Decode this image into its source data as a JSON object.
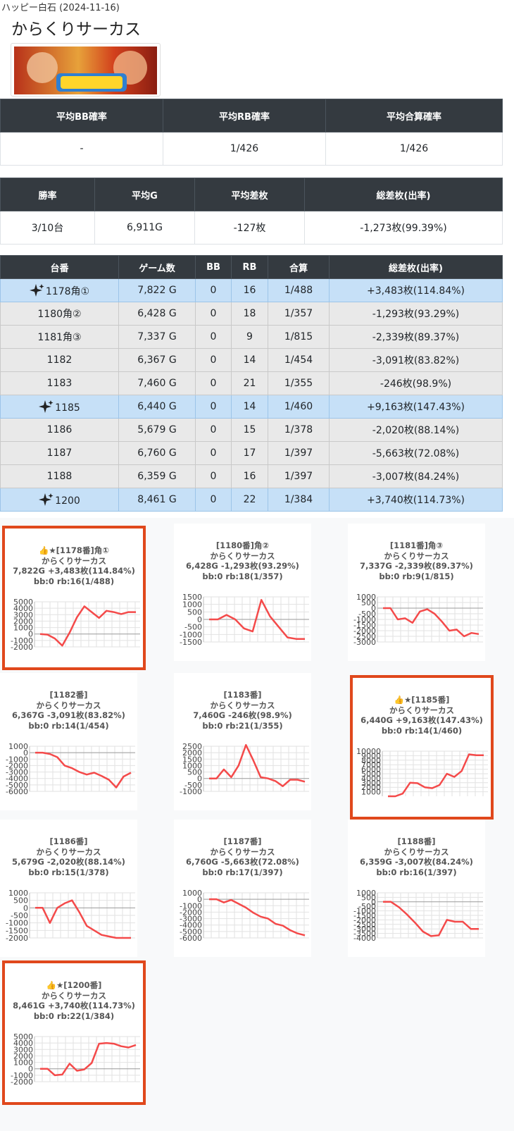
{
  "header": {
    "site": "ハッピー白石 (2024-11-16)",
    "title": "からくりサーカス"
  },
  "summary1": {
    "headers": [
      "平均BB確率",
      "平均RB確率",
      "平均合算確率"
    ],
    "rows": [
      [
        "-",
        "1/426",
        "1/426"
      ]
    ]
  },
  "summary2": {
    "headers": [
      "勝率",
      "平均G",
      "平均差枚",
      "総差枚(出率)"
    ],
    "rows": [
      [
        "3/10台",
        "6,911G",
        "-127枚",
        "-1,273枚(99.39%)"
      ]
    ]
  },
  "machines": {
    "headers": [
      "台番",
      "ゲーム数",
      "BB",
      "RB",
      "合算",
      "総差枚(出率)"
    ],
    "rows": [
      {
        "cells": [
          "1178角①",
          "7,822 G",
          "0",
          "16",
          "1/488",
          "+3,483枚(114.84%)"
        ],
        "highlighted": true
      },
      {
        "cells": [
          "1180角②",
          "6,428 G",
          "0",
          "18",
          "1/357",
          "-1,293枚(93.29%)"
        ],
        "highlighted": false
      },
      {
        "cells": [
          "1181角③",
          "7,337 G",
          "0",
          "9",
          "1/815",
          "-2,339枚(89.37%)"
        ],
        "highlighted": false
      },
      {
        "cells": [
          "1182",
          "6,367 G",
          "0",
          "14",
          "1/454",
          "-3,091枚(83.82%)"
        ],
        "highlighted": false
      },
      {
        "cells": [
          "1183",
          "7,460 G",
          "0",
          "21",
          "1/355",
          "-246枚(98.9%)"
        ],
        "highlighted": false
      },
      {
        "cells": [
          "1185",
          "6,440 G",
          "0",
          "14",
          "1/460",
          "+9,163枚(147.43%)"
        ],
        "highlighted": true
      },
      {
        "cells": [
          "1186",
          "5,679 G",
          "0",
          "15",
          "1/378",
          "-2,020枚(88.14%)"
        ],
        "highlighted": false
      },
      {
        "cells": [
          "1187",
          "6,760 G",
          "0",
          "17",
          "1/397",
          "-5,663枚(72.08%)"
        ],
        "highlighted": false
      },
      {
        "cells": [
          "1188",
          "6,359 G",
          "0",
          "16",
          "1/397",
          "-3,007枚(84.24%)"
        ],
        "highlighted": false
      },
      {
        "cells": [
          "1200",
          "8,461 G",
          "0",
          "22",
          "1/384",
          "+3,740枚(114.73%)"
        ],
        "highlighted": true
      }
    ]
  },
  "cards": [
    {
      "title": "👍★[1178番]角①",
      "subtitle": "からくりサーカス",
      "stats": "7,822G +3,483枚(114.84%)",
      "bb": "bb:0 rb:16(1/488)",
      "highlighted": true,
      "chart": {
        "type": "line",
        "color": "#f44a4a",
        "ylim": [
          -2000,
          5000
        ],
        "yticks": [
          5000,
          4000,
          3000,
          2000,
          1000,
          0,
          -1000,
          -2000
        ],
        "values": [
          0,
          -100,
          -700,
          -1800,
          200,
          2600,
          4300,
          3400,
          2500,
          3600,
          3400,
          3100,
          3400,
          3400
        ]
      }
    },
    {
      "title": "[1180番]角②",
      "subtitle": "からくりサーカス",
      "stats": "6,428G -1,293枚(93.29%)",
      "bb": "bb:0 rb:18(1/357)",
      "highlighted": false,
      "chart": {
        "type": "line",
        "color": "#f44a4a",
        "ylim": [
          -1500,
          1500
        ],
        "yticks": [
          1500,
          1000,
          500,
          0,
          -500,
          -1000,
          -1500
        ],
        "values": [
          0,
          0,
          300,
          0,
          -600,
          -800,
          1300,
          200,
          -500,
          -1200,
          -1300,
          -1300
        ]
      }
    },
    {
      "title": "[1181番]角③",
      "subtitle": "からくりサーカス",
      "stats": "7,337G -2,339枚(89.37%)",
      "bb": "bb:0 rb:9(1/815)",
      "highlighted": false,
      "chart": {
        "type": "line",
        "color": "#f44a4a",
        "ylim": [
          -3000,
          1000
        ],
        "yticks": [
          1000,
          500,
          0,
          -500,
          -1000,
          -1500,
          -2000,
          -2500,
          -3000
        ],
        "values": [
          0,
          0,
          -1000,
          -900,
          -1300,
          -300,
          -100,
          -500,
          -1200,
          -2000,
          -1900,
          -2500,
          -2200,
          -2300
        ]
      }
    },
    {
      "title": "[1182番]",
      "subtitle": "からくりサーカス",
      "stats": "6,367G -3,091枚(83.82%)",
      "bb": "bb:0 rb:14(1/454)",
      "highlighted": false,
      "chart": {
        "type": "line",
        "color": "#f44a4a",
        "ylim": [
          -6000,
          1000
        ],
        "yticks": [
          1000,
          0,
          -1000,
          -2000,
          -3000,
          -4000,
          -5000,
          -6000
        ],
        "values": [
          0,
          0,
          -200,
          -700,
          -2000,
          -2400,
          -3000,
          -3400,
          -3100,
          -3600,
          -4200,
          -5400,
          -3700,
          -3100
        ]
      }
    },
    {
      "title": "[1183番]",
      "subtitle": "からくりサーカス",
      "stats": "7,460G -246枚(98.9%)",
      "bb": "bb:0 rb:21(1/355)",
      "highlighted": false,
      "chart": {
        "type": "line",
        "color": "#f44a4a",
        "ylim": [
          -1000,
          2500
        ],
        "yticks": [
          2500,
          2000,
          1500,
          1000,
          500,
          0,
          -500,
          -1000
        ],
        "values": [
          0,
          0,
          700,
          100,
          1000,
          2600,
          1400,
          100,
          0,
          -200,
          -600,
          -100,
          -100,
          -250
        ]
      }
    },
    {
      "title": "👍★[1185番]",
      "subtitle": "からくりサーカス",
      "stats": "6,440G +9,163枚(147.43%)",
      "bb": "bb:0 rb:14(1/460)",
      "highlighted": true,
      "chart": {
        "type": "line",
        "color": "#f44a4a",
        "ylim": [
          0,
          10000
        ],
        "yticks": [
          10000,
          9000,
          8000,
          7000,
          6000,
          5000,
          4000,
          3000,
          2000,
          1000
        ],
        "values": [
          0,
          0,
          600,
          3000,
          2900,
          2000,
          1800,
          2500,
          5000,
          4300,
          5600,
          9300,
          9100,
          9100
        ]
      }
    },
    {
      "title": "[1186番]",
      "subtitle": "からくりサーカス",
      "stats": "5,679G -2,020枚(88.14%)",
      "bb": "bb:0 rb:15(1/378)",
      "highlighted": false,
      "chart": {
        "type": "line",
        "color": "#f44a4a",
        "ylim": [
          -2000,
          1000
        ],
        "yticks": [
          1000,
          500,
          0,
          -500,
          -1000,
          -1500,
          -2000
        ],
        "values": [
          0,
          0,
          -1000,
          0,
          300,
          500,
          -300,
          -1200,
          -1500,
          -1800,
          -1900,
          -2000,
          -2000,
          -2000
        ]
      }
    },
    {
      "title": "[1187番]",
      "subtitle": "からくりサーカス",
      "stats": "6,760G -5,663枚(72.08%)",
      "bb": "bb:0 rb:17(1/397)",
      "highlighted": false,
      "chart": {
        "type": "line",
        "color": "#f44a4a",
        "ylim": [
          -6000,
          1000
        ],
        "yticks": [
          1000,
          0,
          -1000,
          -2000,
          -3000,
          -4000,
          -5000,
          -6000
        ],
        "values": [
          0,
          0,
          -500,
          -100,
          -700,
          -1300,
          -2100,
          -2700,
          -3000,
          -3800,
          -4100,
          -4800,
          -5300,
          -5600
        ]
      }
    },
    {
      "title": "[1188番]",
      "subtitle": "からくりサーカス",
      "stats": "6,359G -3,007枚(84.24%)",
      "bb": "bb:0 rb:16(1/397)",
      "highlighted": false,
      "chart": {
        "type": "line",
        "color": "#f44a4a",
        "ylim": [
          -4000,
          1000
        ],
        "yticks": [
          1000,
          500,
          0,
          -500,
          -1000,
          -1500,
          -2000,
          -2500,
          -3000,
          -3500,
          -4000
        ],
        "values": [
          0,
          0,
          -600,
          -1400,
          -2300,
          -3300,
          -3800,
          -3700,
          -2000,
          -2200,
          -2200,
          -3000,
          -3000
        ]
      }
    },
    {
      "title": "👍★[1200番]",
      "subtitle": "からくりサーカス",
      "stats": "8,461G +3,740枚(114.73%)",
      "bb": "bb:0 rb:22(1/384)",
      "highlighted": true,
      "chart": {
        "type": "line",
        "color": "#f44a4a",
        "ylim": [
          -2000,
          5000
        ],
        "yticks": [
          5000,
          4000,
          3000,
          2000,
          1000,
          0,
          -1000,
          -2000
        ],
        "values": [
          0,
          0,
          -1000,
          -900,
          800,
          -300,
          -100,
          900,
          3900,
          4000,
          3900,
          3500,
          3300,
          3700
        ]
      }
    }
  ]
}
